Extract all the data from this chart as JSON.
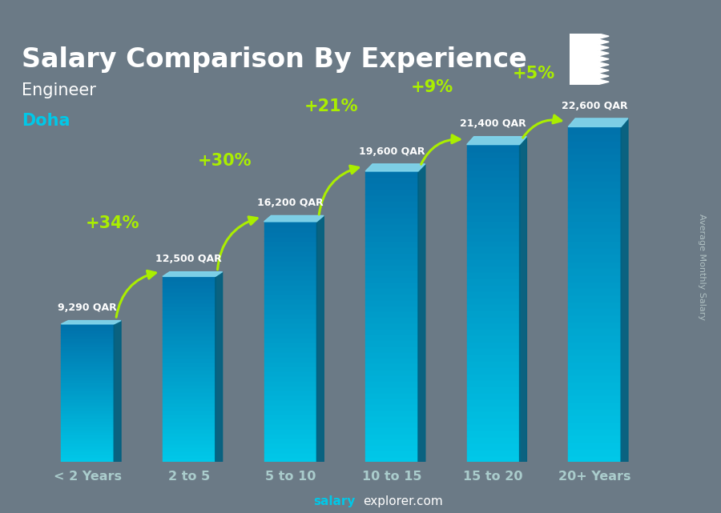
{
  "categories": [
    "< 2 Years",
    "2 to 5",
    "5 to 10",
    "10 to 15",
    "15 to 20",
    "20+ Years"
  ],
  "values": [
    9290,
    12500,
    16200,
    19600,
    21400,
    22600
  ],
  "bar_front_top": "#00c8e8",
  "bar_front_bot": "#0088bb",
  "bar_side": "#006a99",
  "bar_top_face": "#80e0f0",
  "background_color": "#6b7a86",
  "title": "Salary Comparison By Experience",
  "subtitle1": "Engineer",
  "subtitle2": "Doha",
  "subtitle2_color": "#00c8e8",
  "title_color": "#ffffff",
  "subtitle1_color": "#ffffff",
  "ylabel": "Average Monthly Salary",
  "ylabel_color": "#bbcccc",
  "xlabel_color": "#aacccc",
  "footer_salary": "salary",
  "footer_rest": "explorer.com",
  "footer_salary_color": "#00c8e8",
  "footer_rest_color": "#ffffff",
  "pct_labels": [
    "+34%",
    "+30%",
    "+21%",
    "+9%",
    "+5%"
  ],
  "pct_color": "#aaee00",
  "salary_labels": [
    "9,290 QAR",
    "12,500 QAR",
    "16,200 QAR",
    "19,600 QAR",
    "21,400 QAR",
    "22,600 QAR"
  ],
  "ylim": [
    0,
    27000
  ],
  "title_fontsize": 24,
  "subtitle_fontsize": 15,
  "bar_width": 0.52,
  "flag_maroon": "#8b1a4a",
  "flag_white": "#ffffff"
}
